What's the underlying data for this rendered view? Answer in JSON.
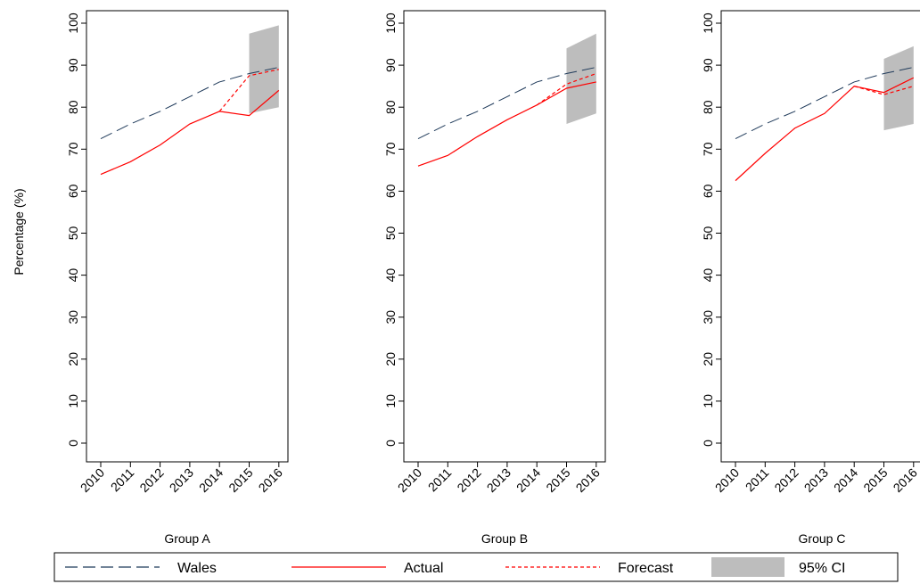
{
  "chart_data": {
    "type": "line",
    "ylabel": "Percentage (%)",
    "ylim": [
      0,
      100
    ],
    "yticks": [
      0,
      10,
      20,
      30,
      40,
      50,
      60,
      70,
      80,
      90,
      100
    ],
    "x": [
      "2010",
      "2011",
      "2012",
      "2013",
      "2014",
      "2015",
      "2016"
    ],
    "colors": {
      "wales": "#1f3a5a",
      "actual": "#ff0000",
      "forecast": "#ff0000",
      "ci": "#bdbdbd"
    },
    "legend": {
      "position": "bottom",
      "items": [
        {
          "key": "wales",
          "label": "Wales"
        },
        {
          "key": "actual",
          "label": "Actual"
        },
        {
          "key": "forecast",
          "label": "Forecast"
        },
        {
          "key": "ci",
          "label": "95% CI"
        }
      ]
    },
    "panels": [
      {
        "xlabel": "Group A",
        "series": [
          {
            "name": "Wales",
            "values": [
              72.5,
              76,
              79,
              82.5,
              86,
              88,
              89.5
            ]
          },
          {
            "name": "Actual",
            "values": [
              64,
              67,
              71,
              76,
              79,
              78,
              84
            ]
          },
          {
            "name": "Forecast",
            "x_start": 4,
            "values": [
              79,
              87.5,
              89
            ]
          }
        ],
        "ci": {
          "x_start": 5,
          "lower": [
            78.5,
            80
          ],
          "upper": [
            97.5,
            99.5
          ]
        }
      },
      {
        "xlabel": "Group B",
        "series": [
          {
            "name": "Wales",
            "values": [
              72.5,
              76,
              79,
              82.5,
              86,
              88,
              89.5
            ]
          },
          {
            "name": "Actual",
            "values": [
              66,
              68.5,
              73,
              77,
              80.5,
              84.5,
              86
            ]
          },
          {
            "name": "Forecast",
            "x_start": 4,
            "values": [
              80.5,
              85.5,
              88
            ]
          }
        ],
        "ci": {
          "x_start": 5,
          "lower": [
            76,
            78.5
          ],
          "upper": [
            94,
            97.5
          ]
        }
      },
      {
        "xlabel": "Group C",
        "series": [
          {
            "name": "Wales",
            "values": [
              72.5,
              76,
              79,
              82.5,
              86,
              88,
              89.5
            ]
          },
          {
            "name": "Actual",
            "values": [
              62.5,
              69,
              75,
              78.5,
              85,
              83.5,
              87
            ]
          },
          {
            "name": "Forecast",
            "x_start": 4,
            "values": [
              85,
              83,
              85
            ]
          }
        ],
        "ci": {
          "x_start": 5,
          "lower": [
            74.5,
            76
          ],
          "upper": [
            91.5,
            94.5
          ]
        }
      }
    ]
  }
}
